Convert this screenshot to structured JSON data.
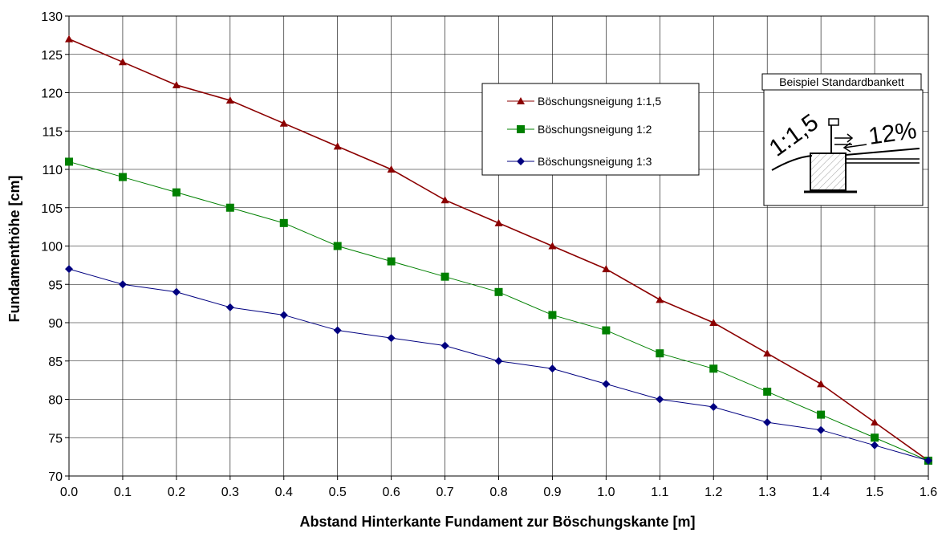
{
  "chart_data": {
    "type": "line",
    "xlabel": "Abstand Hinterkante Fundament zur Böschungskante [m]",
    "ylabel": "Fundamenthöhe [cm]",
    "xlim": [
      0.0,
      1.6
    ],
    "ylim": [
      70,
      130
    ],
    "grid": true,
    "legend_position": "upper-center",
    "x": [
      0.0,
      0.1,
      0.2,
      0.3,
      0.4,
      0.5,
      0.6,
      0.7,
      0.8,
      0.9,
      1.0,
      1.1,
      1.2,
      1.3,
      1.4,
      1.5,
      1.6
    ],
    "x_tick_labels": [
      "0.0",
      "0.1",
      "0.2",
      "0.3",
      "0.4",
      "0.5",
      "0.6",
      "0.7",
      "0.8",
      "0.9",
      "1.0",
      "1.1",
      "1.2",
      "1.3",
      "1.4",
      "1.5",
      "1.6"
    ],
    "y_tick_labels": [
      "70",
      "75",
      "80",
      "85",
      "90",
      "95",
      "100",
      "105",
      "110",
      "115",
      "120",
      "125",
      "130"
    ],
    "series": [
      {
        "name": "Böschungsneigung 1:1,5",
        "color": "#8b0000",
        "marker": "triangle",
        "values": [
          127,
          124,
          121,
          119,
          116,
          113,
          110,
          106,
          103,
          100,
          97,
          93,
          90,
          86,
          82,
          77,
          72
        ]
      },
      {
        "name": "Böschungsneigung 1:2",
        "color": "#008000",
        "marker": "square",
        "values": [
          111,
          109,
          107,
          105,
          103,
          100,
          98,
          96,
          94,
          91,
          89,
          86,
          84,
          81,
          78,
          75,
          72
        ]
      },
      {
        "name": "Böschungsneigung 1:3",
        "color": "#000080",
        "marker": "diamond",
        "values": [
          97,
          95,
          94,
          92,
          91,
          89,
          88,
          87,
          85,
          84,
          82,
          80,
          79,
          77,
          76,
          74,
          72
        ]
      }
    ]
  },
  "inset": {
    "title": "Beispiel Standardbankett",
    "slope_label": "1:1,5",
    "grade_label": "12%"
  }
}
